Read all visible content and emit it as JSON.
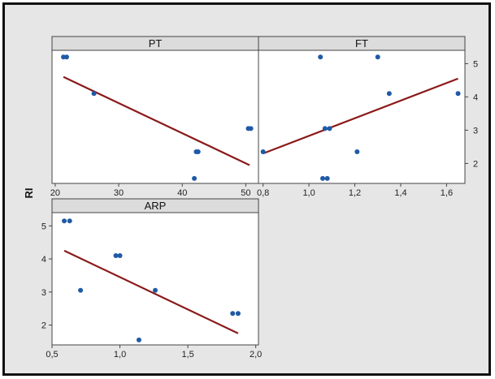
{
  "colors": {
    "background": "#e6e6e6",
    "panel": "#ffffff",
    "strip": "#dcdcdc",
    "point": "#1f5aa6",
    "fit_line": "#8b1a1a",
    "axis": "#444444"
  },
  "chart_data": [
    {
      "type": "scatter",
      "panel": "PT",
      "title": "PT",
      "ylabel": "RI",
      "xlim": [
        19.5,
        52
      ],
      "ylim": [
        1.4,
        5.4
      ],
      "x_ticks": [
        "20",
        "30",
        "40",
        "50"
      ],
      "y_ticks": [],
      "points": [
        {
          "x": 21.3,
          "y": 5.2
        },
        {
          "x": 21.8,
          "y": 5.2
        },
        {
          "x": 26.1,
          "y": 4.1
        },
        {
          "x": 42.2,
          "y": 2.35
        },
        {
          "x": 42.5,
          "y": 2.35
        },
        {
          "x": 41.9,
          "y": 1.55
        },
        {
          "x": 50.4,
          "y": 3.05
        },
        {
          "x": 50.8,
          "y": 3.05
        }
      ],
      "fit_line": [
        {
          "x": 21.3,
          "y": 4.6
        },
        {
          "x": 50.6,
          "y": 1.95
        }
      ]
    },
    {
      "type": "scatter",
      "panel": "FT",
      "title": "FT",
      "ylabel": "RI",
      "xlim": [
        0.78,
        1.68
      ],
      "ylim": [
        1.4,
        5.4
      ],
      "x_ticks": [
        "0,8",
        "1,0",
        "1,2",
        "1,4",
        "1,6"
      ],
      "y_ticks": [
        "2",
        "3",
        "4",
        "5"
      ],
      "points": [
        {
          "x": 0.8,
          "y": 2.35
        },
        {
          "x": 1.05,
          "y": 5.2
        },
        {
          "x": 1.3,
          "y": 5.2
        },
        {
          "x": 1.07,
          "y": 3.05
        },
        {
          "x": 1.09,
          "y": 3.05
        },
        {
          "x": 1.06,
          "y": 1.55
        },
        {
          "x": 1.08,
          "y": 1.55
        },
        {
          "x": 1.21,
          "y": 2.35
        },
        {
          "x": 1.35,
          "y": 4.1
        },
        {
          "x": 1.65,
          "y": 4.1
        }
      ],
      "fit_line": [
        {
          "x": 0.8,
          "y": 2.3
        },
        {
          "x": 1.65,
          "y": 4.55
        }
      ]
    },
    {
      "type": "scatter",
      "panel": "ARP",
      "title": "ARP",
      "ylabel": "RI",
      "xlim": [
        0.5,
        2.02
      ],
      "ylim": [
        1.4,
        5.4
      ],
      "x_ticks": [
        "0,5",
        "1,0",
        "1,5",
        "2,0"
      ],
      "y_ticks": [
        "2",
        "3",
        "4",
        "5"
      ],
      "points": [
        {
          "x": 0.59,
          "y": 5.15
        },
        {
          "x": 0.63,
          "y": 5.15
        },
        {
          "x": 0.71,
          "y": 3.05
        },
        {
          "x": 0.97,
          "y": 4.1
        },
        {
          "x": 1.0,
          "y": 4.1
        },
        {
          "x": 1.14,
          "y": 1.55
        },
        {
          "x": 1.26,
          "y": 3.05
        },
        {
          "x": 1.83,
          "y": 2.35
        },
        {
          "x": 1.87,
          "y": 2.35
        }
      ],
      "fit_line": [
        {
          "x": 0.59,
          "y": 4.25
        },
        {
          "x": 1.87,
          "y": 1.75
        }
      ]
    }
  ]
}
